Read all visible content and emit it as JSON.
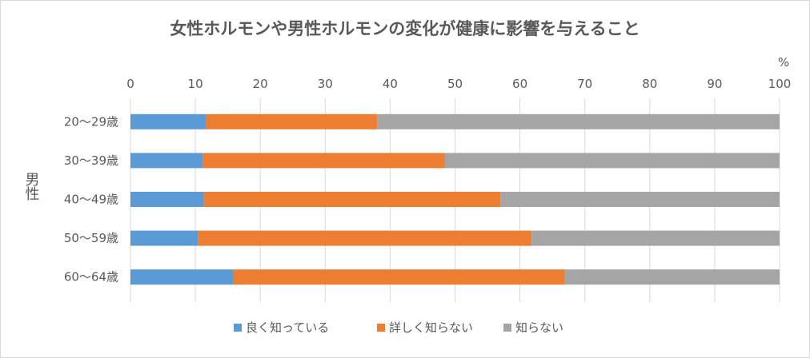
{
  "chart_data": {
    "type": "bar",
    "orientation": "horizontal",
    "stacked": true,
    "title": "女性ホルモンや男性ホルモンの変化が健康に影響を与えること",
    "xlabel": "%",
    "ylabel": "男性",
    "xlim": [
      0,
      100
    ],
    "x_ticks": [
      "0",
      "10",
      "20",
      "30",
      "40",
      "50",
      "60",
      "70",
      "80",
      "90",
      "100"
    ],
    "x_axis_position": "top",
    "grid": "vertical",
    "legend_position": "bottom",
    "categories": [
      "20～29歳",
      "30～39歳",
      "40～49歳",
      "50～59歳",
      "60～64歳"
    ],
    "series": [
      {
        "name": "良く知っている",
        "color": "#5b9bd5",
        "values": [
          11.7,
          11.2,
          11.3,
          10.4,
          15.9
        ]
      },
      {
        "name": "詳しく知らない",
        "color": "#ed7d31",
        "values": [
          26.3,
          37.2,
          45.7,
          51.4,
          51.0
        ]
      },
      {
        "name": "知らない",
        "color": "#a5a5a5",
        "values": [
          62.0,
          51.6,
          43.0,
          38.2,
          33.1
        ]
      }
    ]
  }
}
